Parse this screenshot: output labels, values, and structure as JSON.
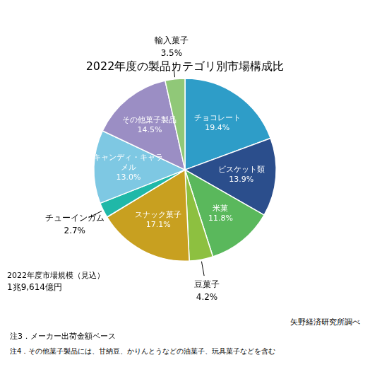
{
  "chart_data": {
    "type": "pie",
    "title": "2022年度の製品カテゴリ別市場構成比",
    "categories": [
      "チョコレート",
      "ビスケット類",
      "米菓",
      "豆菓子",
      "スナック菓子",
      "チューインガム",
      "キャンディ・キャラ\nメル",
      "その他菓子製品",
      "輸入菓子"
    ],
    "values": [
      19.4,
      13.9,
      11.8,
      4.2,
      17.1,
      2.7,
      13.0,
      14.5,
      3.5
    ],
    "value_labels": [
      "19.4%",
      "13.9%",
      "11.8%",
      "4.2%",
      "17.1%",
      "2.7%",
      "13.0%",
      "14.5%",
      "3.5%"
    ],
    "colors": [
      "#2E9DC8",
      "#2B4E8C",
      "#5AB85C",
      "#8DC040",
      "#C8A020",
      "#20B8A8",
      "#7EC8E3",
      "#9B8EC4",
      "#90C878"
    ],
    "data_labels": true,
    "annotations": [
      "2022年度市場規模（見込）",
      "1兆9,614億円",
      "矢野経済研究所調べ",
      "注3．メーカー出荷金額ベース",
      "注4．その他菓子製品には、甘納豆、かりんとうなどの油菓子、玩具菓子などを含む"
    ]
  }
}
